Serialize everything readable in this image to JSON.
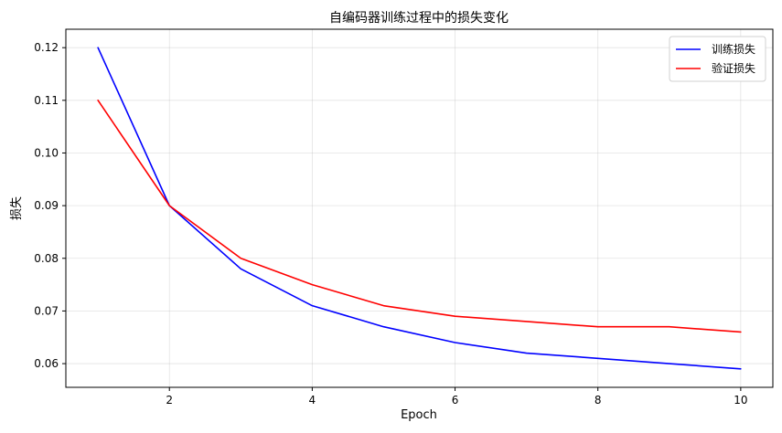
{
  "chart_data": {
    "type": "line",
    "title": "自编码器训练过程中的损失变化",
    "xlabel": "Epoch",
    "ylabel": "损失",
    "xlim": [
      0.55,
      10.45
    ],
    "ylim": [
      0.0555,
      0.1235
    ],
    "x_ticks": [
      2,
      4,
      6,
      8,
      10
    ],
    "y_ticks": [
      0.06,
      0.07,
      0.08,
      0.09,
      0.1,
      0.11,
      0.12
    ],
    "y_tick_labels": [
      "0.06",
      "0.07",
      "0.08",
      "0.09",
      "0.10",
      "0.11",
      "0.12"
    ],
    "grid": true,
    "legend_position": "top-right",
    "x": [
      1,
      2,
      3,
      4,
      5,
      6,
      7,
      8,
      9,
      10
    ],
    "series": [
      {
        "name": "训练损失",
        "color": "#0000ff",
        "values": [
          0.12,
          0.09,
          0.078,
          0.071,
          0.067,
          0.064,
          0.062,
          0.061,
          0.06,
          0.059
        ]
      },
      {
        "name": "验证损失",
        "color": "#ff0000",
        "values": [
          0.11,
          0.09,
          0.08,
          0.075,
          0.071,
          0.069,
          0.068,
          0.067,
          0.067,
          0.066
        ]
      }
    ]
  }
}
